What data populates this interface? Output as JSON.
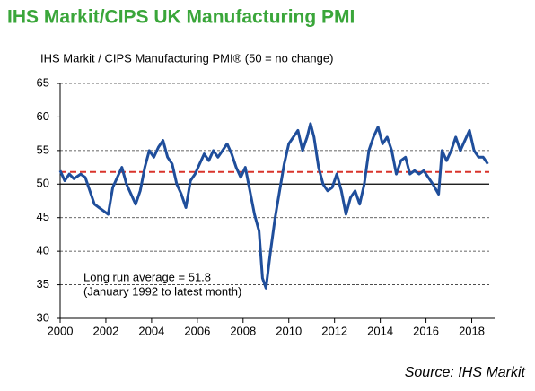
{
  "chart_data": {
    "type": "line",
    "title": "IHS Markit/CIPS UK Manufacturing PMI",
    "subtitle": "IHS Markit / CIPS Manufacturing PMI® (50 = no change)",
    "source": "Source: IHS Markit",
    "x": [
      2000.0,
      2000.2,
      2000.4,
      2000.6,
      2000.9,
      2001.1,
      2001.3,
      2001.5,
      2001.7,
      2001.9,
      2002.1,
      2002.3,
      2002.5,
      2002.7,
      2002.9,
      2003.1,
      2003.3,
      2003.5,
      2003.7,
      2003.9,
      2004.1,
      2004.3,
      2004.5,
      2004.7,
      2004.9,
      2005.1,
      2005.3,
      2005.5,
      2005.7,
      2005.9,
      2006.1,
      2006.3,
      2006.5,
      2006.7,
      2006.9,
      2007.1,
      2007.3,
      2007.5,
      2007.7,
      2007.9,
      2008.1,
      2008.3,
      2008.5,
      2008.7,
      2008.85,
      2009.0,
      2009.2,
      2009.4,
      2009.6,
      2009.8,
      2010.0,
      2010.2,
      2010.4,
      2010.6,
      2010.8,
      2010.95,
      2011.1,
      2011.3,
      2011.5,
      2011.7,
      2011.9,
      2012.1,
      2012.3,
      2012.5,
      2012.7,
      2012.9,
      2013.1,
      2013.3,
      2013.5,
      2013.7,
      2013.9,
      2014.1,
      2014.3,
      2014.5,
      2014.7,
      2014.9,
      2015.1,
      2015.3,
      2015.5,
      2015.7,
      2015.9,
      2016.1,
      2016.3,
      2016.55,
      2016.7,
      2016.9,
      2017.1,
      2017.3,
      2017.5,
      2017.7,
      2017.9,
      2018.1,
      2018.3,
      2018.5,
      2018.7
    ],
    "series": [
      {
        "name": "IHS Markit / CIPS Manufacturing PMI",
        "color": "#1f4e9b",
        "values": [
          52,
          50.5,
          51.5,
          50.8,
          51.5,
          51,
          49,
          47,
          46.5,
          46,
          45.5,
          49.5,
          51,
          52.5,
          50,
          48.5,
          47,
          49,
          52.5,
          55,
          54,
          55.5,
          56.5,
          54,
          53,
          50,
          48.5,
          46.5,
          50.5,
          51.5,
          53,
          54.5,
          53.5,
          55,
          54,
          55,
          56,
          54.5,
          52.5,
          51,
          52.5,
          49,
          45.5,
          43,
          36,
          34.5,
          40,
          45,
          49,
          53,
          56,
          57,
          58,
          55,
          57,
          59,
          57,
          52.5,
          50,
          49,
          49.5,
          51.5,
          49,
          45.5,
          48,
          49,
          47,
          50,
          55,
          57,
          58.5,
          56,
          57,
          55,
          51.5,
          53.5,
          54,
          51.5,
          52,
          51.5,
          52,
          51,
          50,
          48.5,
          55,
          53.5,
          55,
          57,
          55,
          56.5,
          58,
          55,
          54,
          54,
          53
        ]
      }
    ],
    "xlim": [
      2000,
      2019
    ],
    "xticks": [
      2000,
      2002,
      2004,
      2006,
      2008,
      2010,
      2012,
      2014,
      2016,
      2018
    ],
    "ylim": [
      30,
      65
    ],
    "yticks": [
      30,
      35,
      40,
      45,
      50,
      55,
      60,
      65
    ],
    "grid": true,
    "baseline": 50,
    "reference_line": {
      "value": 51.8,
      "color": "#d9342b",
      "label": "Long run average = 51.8",
      "sublabel": "(January 1992 to latest month)"
    }
  }
}
